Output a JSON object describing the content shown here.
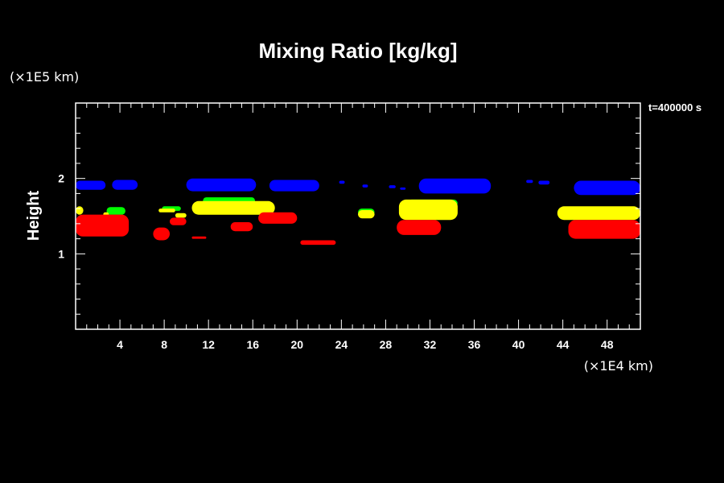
{
  "chart_data": {
    "type": "heatmap",
    "title": "Mixing Ratio [kg/kg]",
    "ylabel": "Height",
    "xlabel": "",
    "x_unit": "(×1E4 km)",
    "y_unit": "(×1E5 km)",
    "time_label": "t=400000 s",
    "xlim": [
      0,
      51
    ],
    "ylim": [
      0,
      3
    ],
    "x_ticks": [
      4,
      8,
      12,
      16,
      20,
      24,
      28,
      32,
      36,
      40,
      44,
      48
    ],
    "y_ticks": [
      1,
      2
    ],
    "grid": false,
    "legend": "none",
    "layers": [
      {
        "color": "#0000ff",
        "regions": [
          {
            "x": [
              0.0,
              2.7
            ],
            "y": [
              1.85,
              1.97
            ]
          },
          {
            "x": [
              3.3,
              5.6
            ],
            "y": [
              1.85,
              1.98
            ]
          },
          {
            "x": [
              10.0,
              16.3
            ],
            "y": [
              1.83,
              2.0
            ]
          },
          {
            "x": [
              17.5,
              22.0
            ],
            "y": [
              1.83,
              1.98
            ]
          },
          {
            "x": [
              23.8,
              24.3
            ],
            "y": [
              1.93,
              1.97
            ]
          },
          {
            "x": [
              25.9,
              26.4
            ],
            "y": [
              1.88,
              1.92
            ]
          },
          {
            "x": [
              28.3,
              28.9
            ],
            "y": [
              1.87,
              1.91
            ]
          },
          {
            "x": [
              29.3,
              29.8
            ],
            "y": [
              1.85,
              1.88
            ]
          },
          {
            "x": [
              31.0,
              37.5
            ],
            "y": [
              1.8,
              2.0
            ]
          },
          {
            "x": [
              40.7,
              41.3
            ],
            "y": [
              1.94,
              1.98
            ]
          },
          {
            "x": [
              41.8,
              42.8
            ],
            "y": [
              1.92,
              1.97
            ]
          },
          {
            "x": [
              45.0,
              51.0
            ],
            "y": [
              1.78,
              1.97
            ]
          }
        ]
      },
      {
        "color": "#00ff00",
        "regions": [
          {
            "x": [
              2.8,
              4.5
            ],
            "y": [
              1.52,
              1.62
            ]
          },
          {
            "x": [
              7.8,
              9.5
            ],
            "y": [
              1.57,
              1.63
            ]
          },
          {
            "x": [
              11.5,
              16.2
            ],
            "y": [
              1.66,
              1.75
            ]
          },
          {
            "x": [
              25.5,
              27.0
            ],
            "y": [
              1.5,
              1.6
            ]
          },
          {
            "x": [
              30.0,
              34.5
            ],
            "y": [
              1.62,
              1.72
            ]
          }
        ]
      },
      {
        "color": "#ffff00",
        "regions": [
          {
            "x": [
              0.0,
              0.7
            ],
            "y": [
              1.52,
              1.63
            ]
          },
          {
            "x": [
              2.5,
              3.0
            ],
            "y": [
              1.5,
              1.55
            ]
          },
          {
            "x": [
              7.5,
              9.0
            ],
            "y": [
              1.55,
              1.6
            ]
          },
          {
            "x": [
              9.0,
              10.0
            ],
            "y": [
              1.48,
              1.54
            ]
          },
          {
            "x": [
              10.5,
              18.0
            ],
            "y": [
              1.52,
              1.7
            ]
          },
          {
            "x": [
              25.5,
              27.0
            ],
            "y": [
              1.47,
              1.58
            ]
          },
          {
            "x": [
              29.2,
              34.5
            ],
            "y": [
              1.45,
              1.72
            ]
          },
          {
            "x": [
              43.5,
              51.0
            ],
            "y": [
              1.45,
              1.63
            ]
          }
        ]
      },
      {
        "color": "#ff0000",
        "regions": [
          {
            "x": [
              0.0,
              4.8
            ],
            "y": [
              1.23,
              1.52
            ]
          },
          {
            "x": [
              7.0,
              8.5
            ],
            "y": [
              1.18,
              1.35
            ]
          },
          {
            "x": [
              8.5,
              10.0
            ],
            "y": [
              1.38,
              1.48
            ]
          },
          {
            "x": [
              10.5,
              11.8
            ],
            "y": [
              1.2,
              1.23
            ]
          },
          {
            "x": [
              14.0,
              16.0
            ],
            "y": [
              1.3,
              1.42
            ]
          },
          {
            "x": [
              16.5,
              20.0
            ],
            "y": [
              1.4,
              1.55
            ]
          },
          {
            "x": [
              20.3,
              23.5
            ],
            "y": [
              1.12,
              1.18
            ]
          },
          {
            "x": [
              29.0,
              33.0
            ],
            "y": [
              1.25,
              1.45
            ]
          },
          {
            "x": [
              44.5,
              51.0
            ],
            "y": [
              1.2,
              1.45
            ]
          }
        ]
      }
    ]
  }
}
